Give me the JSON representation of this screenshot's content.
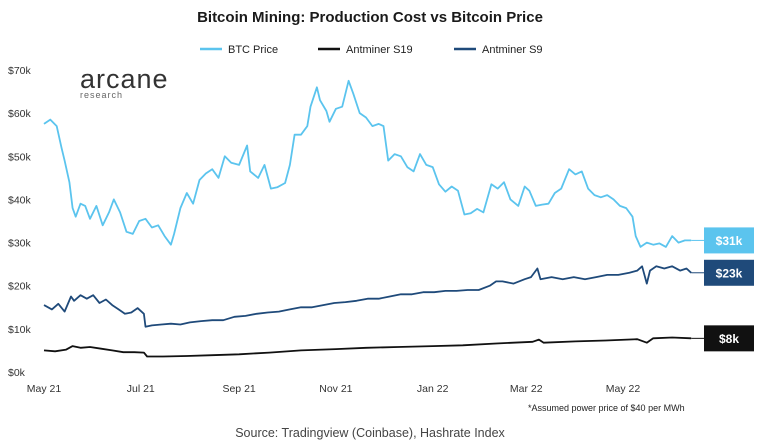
{
  "chart_data": {
    "type": "line",
    "title": "Bitcoin Mining: Production Cost vs Bitcoin Price",
    "x_ticks": [
      "May 21",
      "Jul 21",
      "Sep 21",
      "Nov 21",
      "Jan 22",
      "Mar 22",
      "May 22"
    ],
    "y_ticks": [
      "$0k",
      "$10k",
      "$20k",
      "$30k",
      "$40k",
      "$50k",
      "$60k",
      "$70k"
    ],
    "ylim": [
      0,
      70
    ],
    "y_unit": "thousand USD",
    "x_range": [
      "2021-05-01",
      "2022-06-16"
    ],
    "legend_position": "top-center",
    "grid": false,
    "series": [
      {
        "name": "BTC Price",
        "color": "#5bc4ee",
        "end_label": "$31k",
        "points": [
          [
            "2021-05-01",
            57.5
          ],
          [
            "2021-05-05",
            58.5
          ],
          [
            "2021-05-09",
            57.0
          ],
          [
            "2021-05-12",
            52.0
          ],
          [
            "2021-05-14",
            49.0
          ],
          [
            "2021-05-17",
            44.0
          ],
          [
            "2021-05-19",
            38.0
          ],
          [
            "2021-05-21",
            36.0
          ],
          [
            "2021-05-24",
            39.0
          ],
          [
            "2021-05-27",
            38.5
          ],
          [
            "2021-05-30",
            35.5
          ],
          [
            "2021-06-03",
            38.5
          ],
          [
            "2021-06-07",
            34.0
          ],
          [
            "2021-06-11",
            37.0
          ],
          [
            "2021-06-14",
            40.0
          ],
          [
            "2021-06-18",
            37.0
          ],
          [
            "2021-06-22",
            32.5
          ],
          [
            "2021-06-26",
            32.0
          ],
          [
            "2021-06-30",
            35.0
          ],
          [
            "2021-07-04",
            35.5
          ],
          [
            "2021-07-08",
            33.5
          ],
          [
            "2021-07-12",
            34.0
          ],
          [
            "2021-07-16",
            31.5
          ],
          [
            "2021-07-20",
            29.5
          ],
          [
            "2021-07-22",
            32.0
          ],
          [
            "2021-07-26",
            38.0
          ],
          [
            "2021-07-30",
            41.5
          ],
          [
            "2021-08-03",
            39.0
          ],
          [
            "2021-08-07",
            44.5
          ],
          [
            "2021-08-11",
            46.0
          ],
          [
            "2021-08-15",
            47.0
          ],
          [
            "2021-08-19",
            45.0
          ],
          [
            "2021-08-23",
            50.0
          ],
          [
            "2021-08-27",
            48.5
          ],
          [
            "2021-09-01",
            48.0
          ],
          [
            "2021-09-06",
            52.5
          ],
          [
            "2021-09-08",
            46.5
          ],
          [
            "2021-09-13",
            45.0
          ],
          [
            "2021-09-17",
            48.0
          ],
          [
            "2021-09-21",
            42.5
          ],
          [
            "2021-09-25",
            42.8
          ],
          [
            "2021-09-30",
            43.8
          ],
          [
            "2021-10-03",
            48.0
          ],
          [
            "2021-10-06",
            55.0
          ],
          [
            "2021-10-10",
            55.0
          ],
          [
            "2021-10-14",
            57.0
          ],
          [
            "2021-10-16",
            61.5
          ],
          [
            "2021-10-20",
            66.0
          ],
          [
            "2021-10-22",
            63.0
          ],
          [
            "2021-10-26",
            60.5
          ],
          [
            "2021-10-28",
            58.0
          ],
          [
            "2021-11-01",
            61.0
          ],
          [
            "2021-11-05",
            61.5
          ],
          [
            "2021-11-09",
            67.5
          ],
          [
            "2021-11-12",
            64.5
          ],
          [
            "2021-11-16",
            60.0
          ],
          [
            "2021-11-20",
            59.0
          ],
          [
            "2021-11-24",
            57.0
          ],
          [
            "2021-11-28",
            57.5
          ],
          [
            "2021-12-01",
            57.0
          ],
          [
            "2021-12-04",
            49.0
          ],
          [
            "2021-12-08",
            50.5
          ],
          [
            "2021-12-12",
            50.0
          ],
          [
            "2021-12-16",
            47.5
          ],
          [
            "2021-12-20",
            46.5
          ],
          [
            "2021-12-24",
            50.5
          ],
          [
            "2021-12-28",
            48.0
          ],
          [
            "2022-01-01",
            47.5
          ],
          [
            "2022-01-05",
            43.5
          ],
          [
            "2022-01-09",
            41.8
          ],
          [
            "2022-01-13",
            43.0
          ],
          [
            "2022-01-17",
            42.0
          ],
          [
            "2022-01-21",
            36.5
          ],
          [
            "2022-01-25",
            36.8
          ],
          [
            "2022-01-29",
            37.8
          ],
          [
            "2022-02-02",
            37.0
          ],
          [
            "2022-02-07",
            43.5
          ],
          [
            "2022-02-11",
            42.5
          ],
          [
            "2022-02-15",
            44.0
          ],
          [
            "2022-02-19",
            40.0
          ],
          [
            "2022-02-24",
            38.5
          ],
          [
            "2022-02-28",
            43.0
          ],
          [
            "2022-03-03",
            42.0
          ],
          [
            "2022-03-07",
            38.5
          ],
          [
            "2022-03-11",
            38.8
          ],
          [
            "2022-03-15",
            39.0
          ],
          [
            "2022-03-19",
            41.5
          ],
          [
            "2022-03-23",
            42.5
          ],
          [
            "2022-03-28",
            47.0
          ],
          [
            "2022-04-01",
            45.8
          ],
          [
            "2022-04-05",
            46.5
          ],
          [
            "2022-04-09",
            42.5
          ],
          [
            "2022-04-13",
            41.0
          ],
          [
            "2022-04-17",
            40.5
          ],
          [
            "2022-04-21",
            41.0
          ],
          [
            "2022-04-25",
            40.0
          ],
          [
            "2022-04-29",
            38.5
          ],
          [
            "2022-05-03",
            38.0
          ],
          [
            "2022-05-07",
            36.0
          ],
          [
            "2022-05-09",
            31.5
          ],
          [
            "2022-05-12",
            29.0
          ],
          [
            "2022-05-16",
            30.0
          ],
          [
            "2022-05-20",
            29.5
          ],
          [
            "2022-05-24",
            29.8
          ],
          [
            "2022-05-28",
            29.0
          ],
          [
            "2022-06-01",
            31.5
          ],
          [
            "2022-06-05",
            30.0
          ],
          [
            "2022-06-09",
            30.5
          ],
          [
            "2022-06-13",
            30.5
          ]
        ]
      },
      {
        "name": "Antminer S9",
        "color": "#1f4a7a",
        "end_label": "$23k",
        "points": [
          [
            "2021-05-01",
            15.5
          ],
          [
            "2021-05-06",
            14.5
          ],
          [
            "2021-05-10",
            15.8
          ],
          [
            "2021-05-14",
            14.0
          ],
          [
            "2021-05-18",
            17.5
          ],
          [
            "2021-05-20",
            16.5
          ],
          [
            "2021-05-24",
            17.8
          ],
          [
            "2021-05-28",
            17.0
          ],
          [
            "2021-06-01",
            17.8
          ],
          [
            "2021-06-05",
            16.0
          ],
          [
            "2021-06-09",
            16.8
          ],
          [
            "2021-06-13",
            15.5
          ],
          [
            "2021-06-17",
            14.5
          ],
          [
            "2021-06-21",
            13.5
          ],
          [
            "2021-06-25",
            13.8
          ],
          [
            "2021-06-29",
            14.8
          ],
          [
            "2021-07-03",
            13.5
          ],
          [
            "2021-07-04",
            10.5
          ],
          [
            "2021-07-08",
            10.8
          ],
          [
            "2021-07-14",
            11.0
          ],
          [
            "2021-07-20",
            11.2
          ],
          [
            "2021-07-26",
            11.0
          ],
          [
            "2021-08-01",
            11.5
          ],
          [
            "2021-08-08",
            11.8
          ],
          [
            "2021-08-15",
            12.0
          ],
          [
            "2021-08-22",
            12.0
          ],
          [
            "2021-08-29",
            12.8
          ],
          [
            "2021-09-05",
            13.0
          ],
          [
            "2021-09-12",
            13.5
          ],
          [
            "2021-09-19",
            13.8
          ],
          [
            "2021-09-26",
            14.0
          ],
          [
            "2021-10-03",
            14.5
          ],
          [
            "2021-10-10",
            15.0
          ],
          [
            "2021-10-17",
            15.0
          ],
          [
            "2021-10-24",
            15.5
          ],
          [
            "2021-10-31",
            16.0
          ],
          [
            "2021-11-07",
            16.2
          ],
          [
            "2021-11-14",
            16.5
          ],
          [
            "2021-11-21",
            17.0
          ],
          [
            "2021-11-28",
            17.0
          ],
          [
            "2021-12-05",
            17.5
          ],
          [
            "2021-12-12",
            18.0
          ],
          [
            "2021-12-19",
            18.0
          ],
          [
            "2021-12-26",
            18.5
          ],
          [
            "2022-01-02",
            18.5
          ],
          [
            "2022-01-09",
            18.8
          ],
          [
            "2022-01-16",
            18.8
          ],
          [
            "2022-01-23",
            19.0
          ],
          [
            "2022-01-30",
            19.0
          ],
          [
            "2022-02-06",
            20.0
          ],
          [
            "2022-02-10",
            21.0
          ],
          [
            "2022-02-14",
            21.0
          ],
          [
            "2022-02-21",
            20.5
          ],
          [
            "2022-02-28",
            21.5
          ],
          [
            "2022-03-04",
            22.0
          ],
          [
            "2022-03-08",
            24.0
          ],
          [
            "2022-03-10",
            21.5
          ],
          [
            "2022-03-17",
            22.0
          ],
          [
            "2022-03-24",
            21.5
          ],
          [
            "2022-03-31",
            22.0
          ],
          [
            "2022-04-07",
            21.5
          ],
          [
            "2022-04-14",
            22.0
          ],
          [
            "2022-04-21",
            22.5
          ],
          [
            "2022-04-28",
            22.5
          ],
          [
            "2022-05-05",
            23.0
          ],
          [
            "2022-05-10",
            23.5
          ],
          [
            "2022-05-13",
            24.5
          ],
          [
            "2022-05-16",
            20.5
          ],
          [
            "2022-05-18",
            23.5
          ],
          [
            "2022-05-22",
            24.5
          ],
          [
            "2022-05-27",
            24.0
          ],
          [
            "2022-06-01",
            24.5
          ],
          [
            "2022-06-06",
            23.5
          ],
          [
            "2022-06-10",
            24.0
          ],
          [
            "2022-06-13",
            23.0
          ]
        ]
      },
      {
        "name": "Antminer S19",
        "color": "#111111",
        "end_label": "$8k",
        "points": [
          [
            "2021-05-01",
            5.0
          ],
          [
            "2021-05-08",
            4.8
          ],
          [
            "2021-05-15",
            5.2
          ],
          [
            "2021-05-19",
            6.0
          ],
          [
            "2021-05-24",
            5.6
          ],
          [
            "2021-05-30",
            5.8
          ],
          [
            "2021-06-06",
            5.4
          ],
          [
            "2021-06-13",
            5.0
          ],
          [
            "2021-06-20",
            4.6
          ],
          [
            "2021-06-27",
            4.6
          ],
          [
            "2021-07-03",
            4.5
          ],
          [
            "2021-07-05",
            3.6
          ],
          [
            "2021-07-15",
            3.6
          ],
          [
            "2021-07-30",
            3.7
          ],
          [
            "2021-08-15",
            3.9
          ],
          [
            "2021-09-01",
            4.1
          ],
          [
            "2021-09-20",
            4.5
          ],
          [
            "2021-10-10",
            5.0
          ],
          [
            "2021-11-01",
            5.3
          ],
          [
            "2021-11-20",
            5.6
          ],
          [
            "2021-12-10",
            5.8
          ],
          [
            "2022-01-01",
            6.0
          ],
          [
            "2022-01-20",
            6.2
          ],
          [
            "2022-02-10",
            6.6
          ],
          [
            "2022-03-05",
            7.0
          ],
          [
            "2022-03-09",
            7.5
          ],
          [
            "2022-03-12",
            6.8
          ],
          [
            "2022-04-01",
            7.1
          ],
          [
            "2022-04-20",
            7.3
          ],
          [
            "2022-05-10",
            7.6
          ],
          [
            "2022-05-16",
            6.8
          ],
          [
            "2022-05-20",
            7.8
          ],
          [
            "2022-06-01",
            8.0
          ],
          [
            "2022-06-13",
            7.8
          ]
        ]
      }
    ],
    "legend_order": [
      "BTC Price",
      "Antminer S19",
      "Antminer S9"
    ],
    "footnote": "*Assumed power price of $40 per MWh"
  },
  "branding": {
    "logo_main": "arcane",
    "logo_sub": "research"
  },
  "source": "Source: Tradingview (Coinbase), Hashrate Index"
}
